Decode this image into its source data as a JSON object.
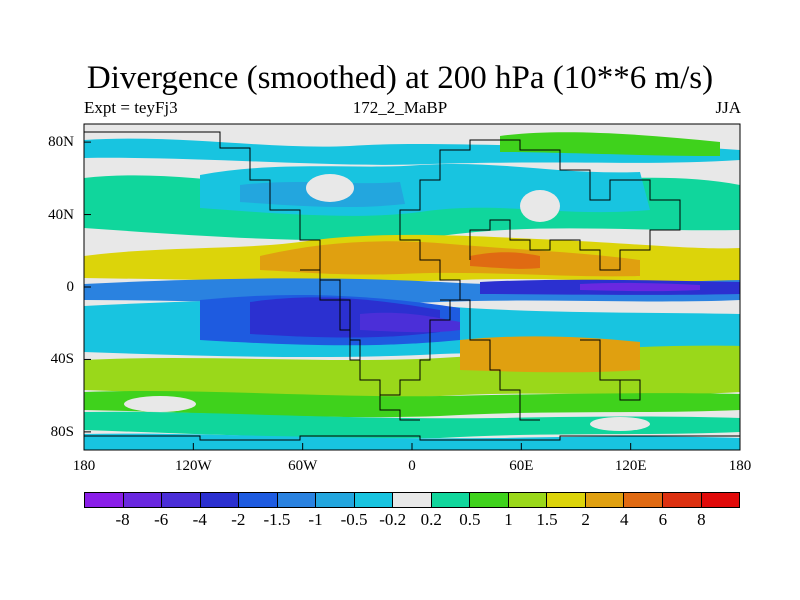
{
  "title": "Divergence (smoothed) at 200 hPa (10**6 m/s)",
  "subtitle_left": "Expt = teyFj3",
  "subtitle_center": "172_2_MaBP",
  "subtitle_right": "JJA",
  "y_axis": {
    "ticks": [
      "80N",
      "40N",
      "0",
      "40S",
      "80S"
    ],
    "lat_values": [
      80,
      40,
      0,
      -40,
      -80
    ],
    "range": [
      -90,
      90
    ]
  },
  "x_axis": {
    "ticks": [
      "180",
      "120W",
      "60W",
      "0",
      "60E",
      "120E",
      "180"
    ],
    "lon_values": [
      -180,
      -120,
      -60,
      0,
      60,
      120,
      180
    ],
    "range": [
      -180,
      180
    ]
  },
  "colorbar": {
    "labels": [
      "-8",
      "-6",
      "-4",
      "-2",
      "-1.5",
      "-1",
      "-0.5",
      "-0.2",
      "0.2",
      "0.5",
      "1",
      "1.5",
      "2",
      "4",
      "6",
      "8"
    ],
    "colors": [
      "#8a1ee8",
      "#6a28e0",
      "#4b2fd8",
      "#2b30d0",
      "#1e5be0",
      "#2a82e0",
      "#23a6de",
      "#18c4e0",
      "#e8e8e8",
      "#10d69c",
      "#3fd21c",
      "#9ad81a",
      "#dcd40a",
      "#e0a010",
      "#e06a12",
      "#dc3010",
      "#e00a0a"
    ]
  },
  "colors": {
    "ocean": "#e8e8e8",
    "coast": "#000000"
  }
}
